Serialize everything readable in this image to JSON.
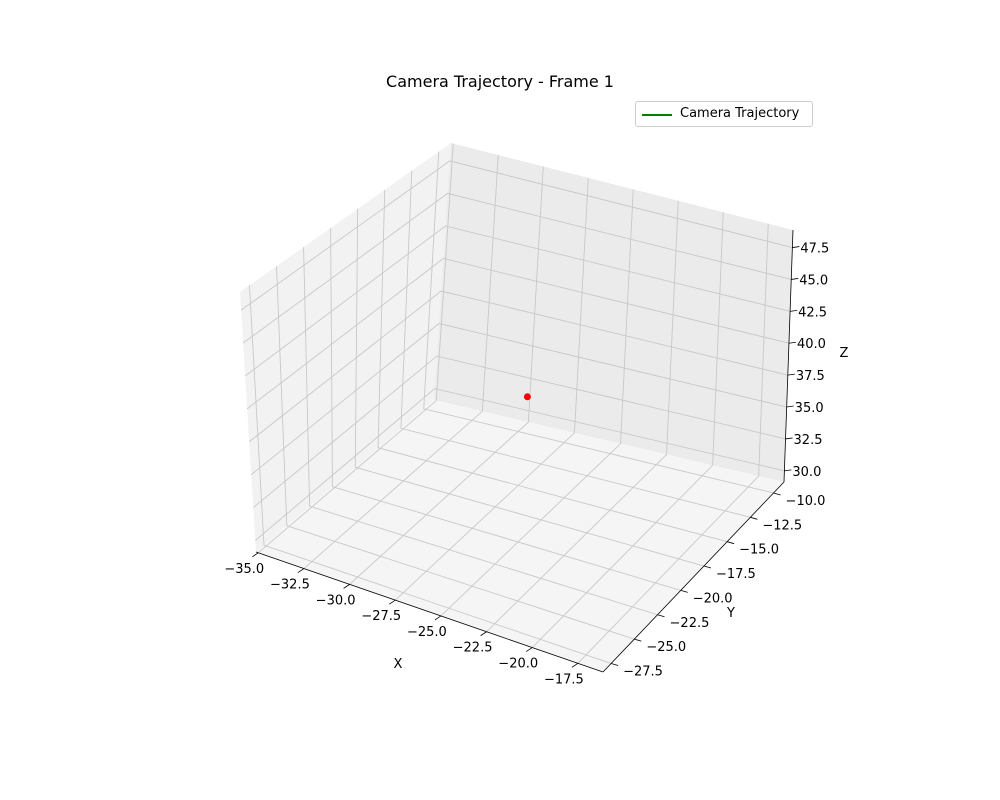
{
  "chart_data": {
    "type": "scatter",
    "title": "Camera Trajectory - Frame 1",
    "xlabel": "X",
    "ylabel": "Y",
    "zlabel": "Z",
    "x_ticks": [
      "−35.0",
      "−32.5",
      "−30.0",
      "−27.5",
      "−25.0",
      "−22.5",
      "−20.0",
      "−17.5"
    ],
    "y_ticks": [
      "−27.5",
      "−25.0",
      "−22.5",
      "−20.0",
      "−17.5",
      "−15.0",
      "−12.5",
      "−10.0"
    ],
    "z_ticks": [
      "30.0",
      "32.5",
      "35.0",
      "37.5",
      "40.0",
      "42.5",
      "45.0",
      "47.5"
    ],
    "grid": true,
    "legend": {
      "position": "upper-right",
      "entries": [
        {
          "label": "Camera Trajectory",
          "color": "#008000"
        }
      ]
    },
    "series": [
      {
        "name": "Camera Trajectory",
        "color": "#008000",
        "points": []
      }
    ],
    "current_point": {
      "x": -26.0,
      "y": -17.5,
      "z": 37.5,
      "color": "#ff0000"
    }
  }
}
